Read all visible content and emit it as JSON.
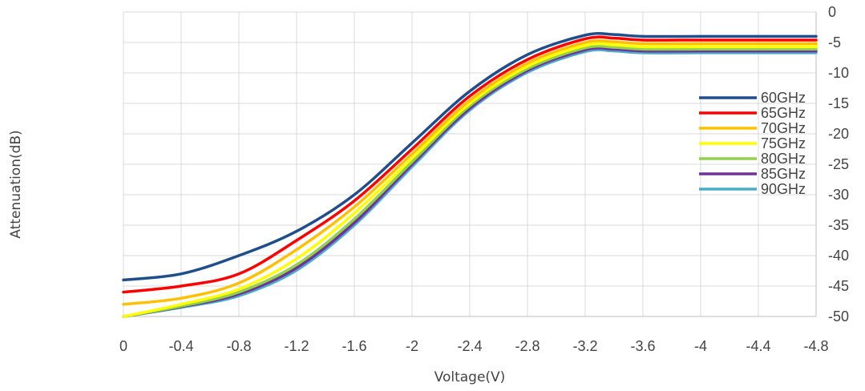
{
  "chart_data": {
    "type": "line",
    "xlabel": "Voltage(V)",
    "ylabel": "Attenuation(dB)",
    "xlim": [
      0,
      -4.8
    ],
    "ylim": [
      -50,
      0
    ],
    "x_ticks": [
      "0",
      "-0.4",
      "-0.8",
      "-1.2",
      "-1.6",
      "-2",
      "-2.4",
      "-2.8",
      "-3.2",
      "-3.6",
      "-4",
      "-4.4",
      "-4.8"
    ],
    "y_ticks": [
      "0",
      "-5",
      "-10",
      "-15",
      "-20",
      "-25",
      "-30",
      "-35",
      "-40",
      "-45",
      "-50"
    ],
    "x_ticks_numeric": [
      0,
      -0.4,
      -0.8,
      -1.2,
      -1.6,
      -2,
      -2.4,
      -2.8,
      -3.2,
      -3.6,
      -4,
      -4.4,
      -4.8
    ],
    "y_ticks_numeric": [
      0,
      -5,
      -10,
      -15,
      -20,
      -25,
      -30,
      -35,
      -40,
      -45,
      -50
    ],
    "grid": "vertical and horizontal",
    "y_axis_side": "right",
    "legend_position": "right",
    "x": [
      0,
      -0.4,
      -0.8,
      -1.2,
      -1.6,
      -2.0,
      -2.4,
      -2.8,
      -3.2,
      -3.4,
      -3.6,
      -4.0,
      -4.4,
      -4.8
    ],
    "series": [
      {
        "name": "60GHz",
        "color": "#1f4e8c",
        "values": [
          -44,
          -43,
          -40,
          -36,
          -30,
          -21.5,
          -13,
          -7,
          -3.8,
          -3.7,
          -4,
          -4,
          -4,
          -4
        ]
      },
      {
        "name": "65GHz",
        "color": "#ff0000",
        "values": [
          -46,
          -45,
          -43,
          -37.5,
          -31,
          -22.5,
          -13.8,
          -7.8,
          -4.4,
          -4.3,
          -4.6,
          -4.6,
          -4.6,
          -4.6
        ]
      },
      {
        "name": "70GHz",
        "color": "#ffc000",
        "values": [
          -48,
          -47,
          -44.5,
          -39,
          -32,
          -23.3,
          -14.5,
          -8.4,
          -5.0,
          -4.9,
          -5.2,
          -5.2,
          -5.2,
          -5.2
        ]
      },
      {
        "name": "75GHz",
        "color": "#ffff00",
        "values": [
          -50,
          -48,
          -45.5,
          -40.5,
          -33,
          -24,
          -15,
          -8.9,
          -5.5,
          -5.4,
          -5.7,
          -5.7,
          -5.7,
          -5.7
        ]
      },
      {
        "name": "80GHz",
        "color": "#92d050",
        "values": [
          -50,
          -48.3,
          -46,
          -41.5,
          -34,
          -24.6,
          -15.4,
          -9.3,
          -5.9,
          -5.8,
          -6.1,
          -6.1,
          -6.1,
          -6.1
        ]
      },
      {
        "name": "85GHz",
        "color": "#7030a0",
        "values": [
          -50,
          -48.4,
          -46.3,
          -42,
          -34.6,
          -25,
          -15.8,
          -9.6,
          -6.2,
          -6.1,
          -6.4,
          -6.4,
          -6.4,
          -6.4
        ]
      },
      {
        "name": "90GHz",
        "color": "#4bacc6",
        "values": [
          -50,
          -48.5,
          -46.6,
          -42.4,
          -35,
          -25.4,
          -16.1,
          -9.9,
          -6.5,
          -6.4,
          -6.7,
          -6.7,
          -6.7,
          -6.7
        ]
      }
    ]
  }
}
